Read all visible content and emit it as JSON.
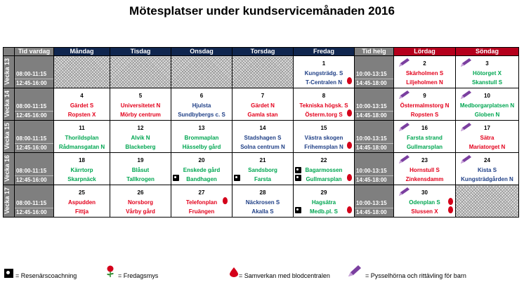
{
  "title": "Mötesplatser under kundservicemånaden 2016",
  "headers": {
    "tid_vardag": "Tid vardag",
    "days_weekday": [
      "Måndag",
      "Tisdag",
      "Onsdag",
      "Torsdag",
      "Fredag"
    ],
    "tid_helg": "Tid helg",
    "days_weekend": [
      "Lördag",
      "Söndag"
    ]
  },
  "times": {
    "weekday": [
      "08:00-11:15",
      "12:45-16:00"
    ],
    "weekend": [
      "10:00-13:15",
      "14:45-18:00"
    ]
  },
  "weeks": [
    {
      "label": "Vecka 13",
      "cells": [
        {
          "hatch": true
        },
        {
          "hatch": true
        },
        {
          "hatch": true
        },
        {
          "hatch": true
        },
        {
          "num": "1",
          "l1": "Kungsträdg. S",
          "c1": "blue",
          "l2": "T-Centralen N",
          "c2": "blue",
          "rose": true
        },
        {
          "num": "2",
          "l1": "Skärholmen S",
          "c1": "red",
          "l2": "Liljeholmen N",
          "c2": "red",
          "pencil": true
        },
        {
          "num": "3",
          "l1": "Hötorget X",
          "c1": "green",
          "l2": "Skanstull S",
          "c2": "green",
          "pencil": true
        }
      ]
    },
    {
      "label": "Vecka 14",
      "cells": [
        {
          "num": "4",
          "l1": "Gärdet S",
          "c1": "red",
          "l2": "Ropsten X",
          "c2": "red"
        },
        {
          "num": "5",
          "l1": "Universitetet N",
          "c1": "red",
          "l2": "Mörby centrum",
          "c2": "red"
        },
        {
          "num": "6",
          "l1": "Hjulsta",
          "c1": "blue",
          "l2": "Sundbybergs c. S",
          "c2": "blue"
        },
        {
          "num": "7",
          "l1": "Gärdet N",
          "c1": "red",
          "l2": "Gamla stan",
          "c2": "red"
        },
        {
          "num": "8",
          "l1": "Tekniska högsk. S",
          "c1": "red",
          "l2": "Österm.torg S",
          "c2": "red",
          "rose": true
        },
        {
          "num": "9",
          "l1": "Östermalmstorg N",
          "c1": "red",
          "l2": "Ropsten S",
          "c2": "red",
          "pencil": true
        },
        {
          "num": "10",
          "l1": "Medborgarplatsen N",
          "c1": "green",
          "l2": "Globen N",
          "c2": "green",
          "pencil": true
        }
      ]
    },
    {
      "label": "Vecka 15",
      "cells": [
        {
          "num": "11",
          "l1": "Thorildsplan",
          "c1": "green",
          "l2": "Rådmansgatan N",
          "c2": "green"
        },
        {
          "num": "12",
          "l1": "Alvik N",
          "c1": "green",
          "l2": "Blackeberg",
          "c2": "green"
        },
        {
          "num": "13",
          "l1": "Brommaplan",
          "c1": "green",
          "l2": "Hässelby gård",
          "c2": "green"
        },
        {
          "num": "14",
          "l1": "Stadshagen S",
          "c1": "blue",
          "l2": "Solna centrum N",
          "c2": "blue"
        },
        {
          "num": "15",
          "l1": "Västra skogen",
          "c1": "blue",
          "l2": "Frihemsplan N",
          "c2": "blue",
          "rose": true
        },
        {
          "num": "16",
          "l1": "Farsta strand",
          "c1": "green",
          "l2": "Gullmarsplan",
          "c2": "green",
          "pencil": true
        },
        {
          "num": "17",
          "l1": "Sätra",
          "c1": "red",
          "l2": "Mariatorget N",
          "c2": "red",
          "pencil": true
        }
      ]
    },
    {
      "label": "Vecka 16",
      "cells": [
        {
          "num": "18",
          "l1": "Kärrtorp",
          "c1": "green",
          "l2": "Skarpnäck",
          "c2": "green"
        },
        {
          "num": "19",
          "l1": "Blåsut",
          "c1": "green",
          "l2": "Tallkrogen",
          "c2": "green"
        },
        {
          "num": "20",
          "l1": "Enskede gård",
          "c1": "green",
          "l2": "Bandhagen",
          "c2": "green",
          "coach": true
        },
        {
          "num": "21",
          "l1": "Sandsborg",
          "c1": "green",
          "l2": "Farsta",
          "c2": "green",
          "coach": true
        },
        {
          "num": "22",
          "l1": "Bagarmossen",
          "c1": "green",
          "l2": "Gullmarsplan",
          "c2": "green",
          "rose": true,
          "coach": true
        },
        {
          "num": "23",
          "l1": "Hornstull S",
          "c1": "red",
          "l2": "Zinkensdamm",
          "c2": "red",
          "pencil": true
        },
        {
          "num": "24",
          "l1": "Kista S",
          "c1": "blue",
          "l2": "Kungsträdgården N",
          "c2": "blue",
          "pencil": true
        }
      ]
    },
    {
      "label": "Vecka 17",
      "cells": [
        {
          "num": "25",
          "l1": "Aspudden",
          "c1": "red",
          "l2": "Fittja",
          "c2": "red"
        },
        {
          "num": "26",
          "l1": "Norsborg",
          "c1": "red",
          "l2": "Vårby gård",
          "c2": "red"
        },
        {
          "num": "27",
          "l1": "Telefonplan",
          "c1": "red",
          "l2": "Fruängen",
          "c2": "red",
          "drop": true
        },
        {
          "num": "28",
          "l1": "Näckrosen S",
          "c1": "blue",
          "l2": "Akalla S",
          "c2": "blue"
        },
        {
          "num": "29",
          "l1": "Hagsätra",
          "c1": "green",
          "l2": "Medb.pl. S",
          "c2": "green",
          "rose": true,
          "coach": true
        },
        {
          "num": "30",
          "l1": "Odenplan S",
          "c1": "green",
          "l2": "Slussen X",
          "c2": "red",
          "rose": true,
          "pencil": true
        },
        {
          "hatch": true
        }
      ]
    }
  ],
  "legend": {
    "coach": "= Resenärscoachning",
    "rose": "= Fredagsmys",
    "drop": "= Samverkan med blodcentralen",
    "pencil": "= Pysselhörna och rittävling för barn"
  },
  "colors": {
    "header_weekday": "#10264f",
    "header_weekend": "#b5001c",
    "grey": "#7f7f7f",
    "red": "#e3001b",
    "blue": "#1f3f86",
    "green": "#00a651"
  }
}
